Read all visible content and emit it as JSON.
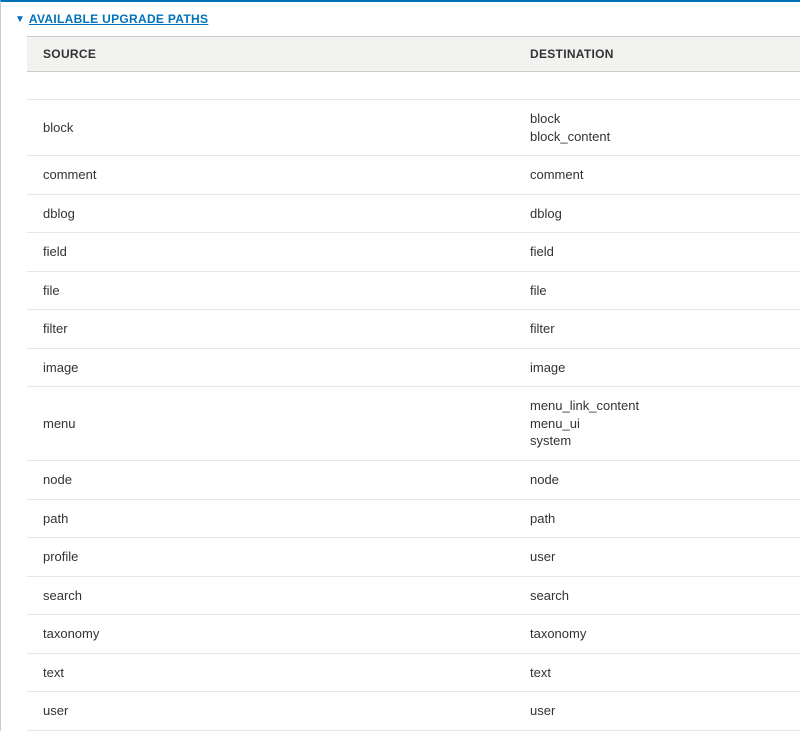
{
  "section": {
    "title": "AVAILABLE UPGRADE PATHS",
    "expanded": true
  },
  "table": {
    "columns": {
      "source": "SOURCE",
      "destination": "DESTINATION"
    },
    "rows": [
      {
        "source": "block",
        "destination": [
          "block",
          "block_content"
        ]
      },
      {
        "source": "comment",
        "destination": [
          "comment"
        ]
      },
      {
        "source": "dblog",
        "destination": [
          "dblog"
        ]
      },
      {
        "source": "field",
        "destination": [
          "field"
        ]
      },
      {
        "source": "file",
        "destination": [
          "file"
        ]
      },
      {
        "source": "filter",
        "destination": [
          "filter"
        ]
      },
      {
        "source": "image",
        "destination": [
          "image"
        ]
      },
      {
        "source": "menu",
        "destination": [
          "menu_link_content",
          "menu_ui",
          "system"
        ]
      },
      {
        "source": "node",
        "destination": [
          "node"
        ]
      },
      {
        "source": "path",
        "destination": [
          "path"
        ]
      },
      {
        "source": "profile",
        "destination": [
          "user"
        ]
      },
      {
        "source": "search",
        "destination": [
          "search"
        ]
      },
      {
        "source": "taxonomy",
        "destination": [
          "taxonomy"
        ]
      },
      {
        "source": "text",
        "destination": [
          "text"
        ]
      },
      {
        "source": "user",
        "destination": [
          "user"
        ]
      }
    ]
  },
  "colors": {
    "accent": "#0072b9",
    "header_bg": "#f2f2f0",
    "row_border": "#e6e6e6",
    "outer_border": "#cccccc",
    "text": "#333333"
  }
}
